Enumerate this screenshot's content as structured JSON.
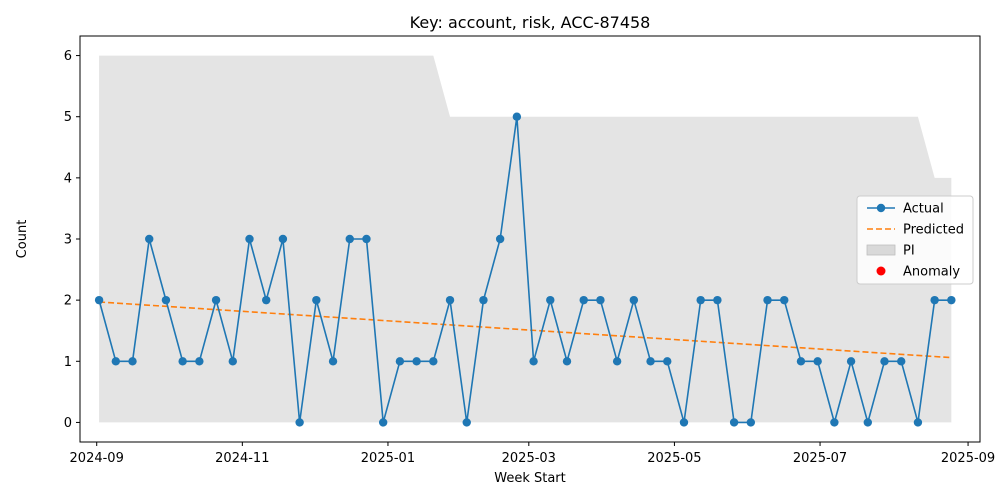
{
  "chart_data": {
    "type": "line",
    "title": "Key: account, risk, ACC-87458",
    "xlabel": "Week Start",
    "ylabel": "Count",
    "x_ticks": [
      "2024-09",
      "2024-11",
      "2025-01",
      "2025-03",
      "2025-05",
      "2025-07",
      "2025-09"
    ],
    "y_ticks": [
      0,
      1,
      2,
      3,
      4,
      5,
      6
    ],
    "ylim": [
      -0.32,
      6.32
    ],
    "xlim": [
      "2024-08-25",
      "2025-09-06"
    ],
    "grid": false,
    "legend_position": "center-right",
    "legend": [
      {
        "label": "Actual",
        "kind": "line-marker",
        "color": "#1f77b4"
      },
      {
        "label": "Predicted",
        "kind": "dashed-line",
        "color": "#ff7f0e"
      },
      {
        "label": "PI",
        "kind": "patch",
        "color": "#d9d9d9"
      },
      {
        "label": "Anomaly",
        "kind": "marker",
        "color": "#ff0000"
      }
    ],
    "series": [
      {
        "name": "Actual",
        "color": "#1f77b4",
        "x": [
          "2024-09-02",
          "2024-09-09",
          "2024-09-16",
          "2024-09-23",
          "2024-09-30",
          "2024-10-07",
          "2024-10-14",
          "2024-10-21",
          "2024-10-28",
          "2024-11-04",
          "2024-11-11",
          "2024-11-18",
          "2024-11-25",
          "2024-12-02",
          "2024-12-09",
          "2024-12-16",
          "2024-12-23",
          "2024-12-30",
          "2025-01-06",
          "2025-01-13",
          "2025-01-20",
          "2025-01-27",
          "2025-02-03",
          "2025-02-10",
          "2025-02-17",
          "2025-02-24",
          "2025-03-03",
          "2025-03-10",
          "2025-03-17",
          "2025-03-24",
          "2025-03-31",
          "2025-04-07",
          "2025-04-14",
          "2025-04-21",
          "2025-04-28",
          "2025-05-05",
          "2025-05-12",
          "2025-05-19",
          "2025-05-26",
          "2025-06-02",
          "2025-06-09",
          "2025-06-16",
          "2025-06-23",
          "2025-06-30",
          "2025-07-07",
          "2025-07-14",
          "2025-07-21",
          "2025-07-28",
          "2025-08-04",
          "2025-08-11",
          "2025-08-18",
          "2025-08-25"
        ],
        "values": [
          2,
          1,
          1,
          3,
          2,
          1,
          1,
          2,
          1,
          3,
          2,
          3,
          0,
          2,
          1,
          3,
          3,
          0,
          1,
          1,
          1,
          2,
          0,
          2,
          3,
          5,
          1,
          2,
          1,
          2,
          2,
          1,
          2,
          1,
          1,
          0,
          2,
          2,
          0,
          0,
          2,
          2,
          1,
          1,
          0,
          1,
          0,
          1,
          1,
          0,
          2,
          2
        ]
      },
      {
        "name": "Predicted",
        "color": "#ff7f0e",
        "x": [
          "2024-09-02",
          "2025-08-25"
        ],
        "values": [
          1.97,
          1.06
        ]
      }
    ],
    "pi_band": {
      "name": "PI",
      "color": "#d9d9d9",
      "x": [
        "2024-09-02",
        "2025-01-20",
        "2025-01-27",
        "2025-08-11",
        "2025-08-18",
        "2025-08-25"
      ],
      "upper": [
        6,
        6,
        5,
        5,
        4,
        4
      ],
      "lower": [
        0,
        0,
        0,
        0,
        0,
        0
      ]
    },
    "anomalies": []
  }
}
